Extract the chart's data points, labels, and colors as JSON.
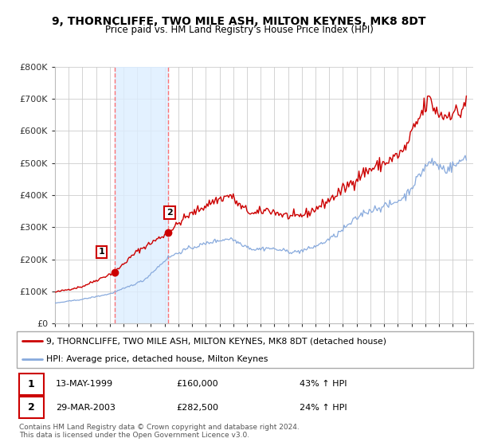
{
  "title": "9, THORNCLIFFE, TWO MILE ASH, MILTON KEYNES, MK8 8DT",
  "subtitle": "Price paid vs. HM Land Registry's House Price Index (HPI)",
  "ylim": [
    0,
    800000
  ],
  "yticks": [
    0,
    100000,
    200000,
    300000,
    400000,
    500000,
    600000,
    700000,
    800000
  ],
  "ytick_labels": [
    "£0",
    "£100K",
    "£200K",
    "£300K",
    "£400K",
    "£500K",
    "£600K",
    "£700K",
    "£800K"
  ],
  "xlim_start": 1995.0,
  "xlim_end": 2025.5,
  "purchase1_x": 1999.36,
  "purchase1_y": 160000,
  "purchase2_x": 2003.24,
  "purchase2_y": 282500,
  "line1_color": "#cc0000",
  "line2_color": "#88aadd",
  "marker_color": "#cc0000",
  "shade_color": "#ddeeff",
  "vline_color": "#ff6666",
  "legend1": "9, THORNCLIFFE, TWO MILE ASH, MILTON KEYNES, MK8 8DT (detached house)",
  "legend2": "HPI: Average price, detached house, Milton Keynes",
  "purchase1_date": "13-MAY-1999",
  "purchase1_price": "£160,000",
  "purchase1_hpi": "43% ↑ HPI",
  "purchase2_date": "29-MAR-2003",
  "purchase2_price": "£282,500",
  "purchase2_hpi": "24% ↑ HPI",
  "footer1": "Contains HM Land Registry data © Crown copyright and database right 2024.",
  "footer2": "This data is licensed under the Open Government Licence v3.0.",
  "background_color": "#ffffff",
  "grid_color": "#cccccc"
}
